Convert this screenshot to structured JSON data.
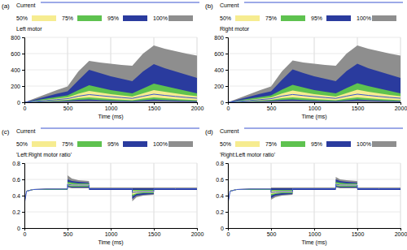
{
  "chart_data": [
    {
      "type": "area",
      "annotation": "(a)",
      "title": "Left motor",
      "xlabel": "Time (ms)",
      "x": [
        0,
        125,
        250,
        375,
        500,
        625,
        750,
        875,
        1000,
        1125,
        1250,
        1375,
        1500,
        1625,
        1750,
        1875,
        2000
      ],
      "xlim": [
        0,
        2000
      ],
      "xticks": [
        0,
        500,
        1000,
        1500,
        2000
      ],
      "ylim": [
        0,
        800
      ],
      "yticks": [
        0,
        200,
        400,
        600,
        800
      ],
      "grid": true,
      "legend": "top",
      "series": [
        {
          "name": "Current",
          "type": "line",
          "color": "#3a55d0",
          "values": [
            0,
            11,
            22,
            33,
            44,
            75,
            95,
            82,
            70,
            58,
            48,
            75,
            100,
            85,
            72,
            60,
            50
          ]
        },
        {
          "name": "50%",
          "color": "#f6ec90",
          "lower": [
            0,
            8,
            15,
            22,
            30,
            50,
            60,
            50,
            40,
            32,
            25,
            45,
            60,
            50,
            40,
            32,
            25
          ],
          "upper": [
            0,
            15,
            30,
            45,
            60,
            105,
            140,
            120,
            100,
            85,
            70,
            110,
            150,
            130,
            110,
            90,
            75
          ]
        },
        {
          "name": "75%",
          "color": "#5ec24f",
          "lower": [
            0,
            5,
            10,
            15,
            20,
            30,
            35,
            28,
            22,
            18,
            14,
            25,
            35,
            28,
            22,
            18,
            14
          ],
          "upper": [
            0,
            22,
            45,
            65,
            85,
            150,
            210,
            180,
            150,
            130,
            110,
            170,
            230,
            200,
            170,
            140,
            110
          ]
        },
        {
          "name": "95%",
          "color": "#2a3b9e",
          "lower": [
            0,
            2,
            5,
            7,
            10,
            15,
            18,
            14,
            10,
            8,
            6,
            12,
            18,
            14,
            10,
            8,
            6
          ],
          "upper": [
            0,
            35,
            70,
            105,
            135,
            270,
            400,
            360,
            320,
            290,
            260,
            380,
            470,
            420,
            380,
            340,
            300
          ]
        },
        {
          "name": "100%",
          "color": "#8e8e8e",
          "lower": [
            0,
            0,
            0,
            0,
            0,
            0,
            0,
            0,
            0,
            0,
            0,
            0,
            0,
            0,
            0,
            0,
            0
          ],
          "upper": [
            0,
            50,
            100,
            150,
            195,
            380,
            510,
            490,
            475,
            460,
            450,
            600,
            700,
            660,
            630,
            600,
            575
          ]
        }
      ]
    },
    {
      "type": "area",
      "annotation": "(b)",
      "title": "Right motor",
      "xlabel": "Time (ms)",
      "x": [
        0,
        125,
        250,
        375,
        500,
        625,
        750,
        875,
        1000,
        1125,
        1250,
        1375,
        1500,
        1625,
        1750,
        1875,
        2000
      ],
      "xlim": [
        0,
        2000
      ],
      "xticks": [
        0,
        500,
        1000,
        1500,
        2000
      ],
      "ylim": [
        0,
        800
      ],
      "yticks": [
        0,
        200,
        400,
        600,
        800
      ],
      "grid": true,
      "legend": "top",
      "series": [
        {
          "name": "Current",
          "type": "line",
          "color": "#3a55d0",
          "values": [
            0,
            11,
            22,
            33,
            44,
            76,
            96,
            82,
            70,
            58,
            48,
            76,
            100,
            85,
            72,
            60,
            50
          ]
        },
        {
          "name": "50%",
          "color": "#f6ec90",
          "lower": [
            0,
            8,
            15,
            22,
            30,
            50,
            60,
            50,
            40,
            32,
            25,
            45,
            60,
            50,
            40,
            32,
            25
          ],
          "upper": [
            0,
            15,
            30,
            45,
            60,
            108,
            145,
            122,
            100,
            85,
            70,
            112,
            155,
            130,
            110,
            90,
            75
          ]
        },
        {
          "name": "75%",
          "color": "#5ec24f",
          "lower": [
            0,
            5,
            10,
            15,
            20,
            30,
            35,
            28,
            22,
            18,
            14,
            25,
            35,
            28,
            22,
            18,
            14
          ],
          "upper": [
            0,
            22,
            45,
            65,
            85,
            155,
            215,
            182,
            150,
            130,
            110,
            175,
            235,
            200,
            170,
            140,
            110
          ]
        },
        {
          "name": "95%",
          "color": "#2a3b9e",
          "lower": [
            0,
            2,
            5,
            7,
            10,
            15,
            18,
            14,
            10,
            8,
            6,
            12,
            18,
            14,
            10,
            8,
            6
          ],
          "upper": [
            0,
            35,
            70,
            105,
            135,
            275,
            405,
            360,
            320,
            290,
            260,
            385,
            475,
            420,
            380,
            340,
            300
          ]
        },
        {
          "name": "100%",
          "color": "#8e8e8e",
          "lower": [
            0,
            0,
            0,
            0,
            0,
            0,
            0,
            0,
            0,
            0,
            0,
            0,
            0,
            0,
            0,
            0,
            0
          ],
          "upper": [
            0,
            50,
            100,
            150,
            195,
            380,
            515,
            490,
            475,
            460,
            450,
            600,
            700,
            660,
            630,
            600,
            575
          ]
        }
      ]
    },
    {
      "type": "area",
      "annotation": "(c)",
      "title": "'Left:Right motor ratio'",
      "xlabel": "Time (ms)",
      "x": [
        0,
        25,
        100,
        250,
        499,
        500,
        550,
        625,
        749,
        750,
        1000,
        1249,
        1250,
        1300,
        1375,
        1499,
        1500,
        1750,
        2000
      ],
      "xlim": [
        0,
        2000
      ],
      "xticks": [
        0,
        500,
        1000,
        1500,
        2000
      ],
      "ylim": [
        0,
        0.8
      ],
      "yticks": [
        0,
        0.2,
        0.4,
        0.6,
        0.8
      ],
      "grid": true,
      "legend": "top",
      "series": [
        {
          "name": "Current",
          "type": "line",
          "color": "#3a55d0",
          "values": [
            0.3,
            0.455,
            0.475,
            0.48,
            0.48,
            0.54,
            0.53,
            0.53,
            0.53,
            0.485,
            0.485,
            0.485,
            0.44,
            0.445,
            0.45,
            0.45,
            0.485,
            0.485,
            0.485
          ]
        },
        {
          "name": "50%",
          "color": "#f6ec90",
          "lower": [
            0.3,
            0.45,
            0.47,
            0.48,
            0.48,
            0.53,
            0.52,
            0.52,
            0.52,
            0.48,
            0.48,
            0.48,
            0.41,
            0.43,
            0.44,
            0.44,
            0.48,
            0.48,
            0.48
          ],
          "upper": [
            0.3,
            0.46,
            0.48,
            0.48,
            0.48,
            0.55,
            0.54,
            0.54,
            0.54,
            0.49,
            0.49,
            0.49,
            0.46,
            0.46,
            0.46,
            0.46,
            0.49,
            0.49,
            0.49
          ]
        },
        {
          "name": "75%",
          "color": "#5ec24f",
          "lower": [
            0.3,
            0.45,
            0.47,
            0.47,
            0.47,
            0.52,
            0.51,
            0.51,
            0.51,
            0.48,
            0.48,
            0.48,
            0.39,
            0.42,
            0.43,
            0.43,
            0.48,
            0.48,
            0.48
          ],
          "upper": [
            0.3,
            0.46,
            0.48,
            0.48,
            0.48,
            0.57,
            0.56,
            0.55,
            0.55,
            0.49,
            0.49,
            0.49,
            0.47,
            0.47,
            0.47,
            0.47,
            0.49,
            0.49,
            0.49
          ]
        },
        {
          "name": "95%",
          "color": "#2a3b9e",
          "lower": [
            0.3,
            0.45,
            0.47,
            0.47,
            0.47,
            0.51,
            0.5,
            0.5,
            0.5,
            0.47,
            0.47,
            0.47,
            0.36,
            0.4,
            0.41,
            0.42,
            0.47,
            0.47,
            0.47
          ],
          "upper": [
            0.3,
            0.46,
            0.48,
            0.48,
            0.48,
            0.6,
            0.58,
            0.57,
            0.56,
            0.49,
            0.49,
            0.49,
            0.49,
            0.49,
            0.49,
            0.49,
            0.49,
            0.49,
            0.49
          ]
        },
        {
          "name": "100%",
          "color": "#8e8e8e",
          "lower": [
            0.3,
            0.45,
            0.47,
            0.47,
            0.47,
            0.5,
            0.49,
            0.49,
            0.49,
            0.47,
            0.47,
            0.47,
            0.33,
            0.38,
            0.4,
            0.41,
            0.47,
            0.47,
            0.47
          ],
          "upper": [
            0.3,
            0.46,
            0.48,
            0.49,
            0.49,
            0.65,
            0.61,
            0.59,
            0.58,
            0.5,
            0.5,
            0.5,
            0.5,
            0.5,
            0.5,
            0.5,
            0.5,
            0.5,
            0.5
          ]
        }
      ]
    },
    {
      "type": "area",
      "annotation": "(d)",
      "title": "'Right:Left motor ratio'",
      "xlabel": "Time (ms)",
      "x": [
        0,
        25,
        100,
        250,
        499,
        500,
        550,
        625,
        749,
        750,
        1000,
        1249,
        1250,
        1300,
        1375,
        1499,
        1500,
        1750,
        2000
      ],
      "xlim": [
        0,
        2000
      ],
      "xticks": [
        0,
        500,
        1000,
        1500,
        2000
      ],
      "ylim": [
        0,
        0.8
      ],
      "yticks": [
        0,
        0.2,
        0.4,
        0.6,
        0.8
      ],
      "grid": true,
      "legend": "top",
      "series": [
        {
          "name": "Current",
          "type": "line",
          "color": "#3a55d0",
          "values": [
            0.3,
            0.455,
            0.475,
            0.48,
            0.48,
            0.44,
            0.445,
            0.45,
            0.45,
            0.485,
            0.485,
            0.485,
            0.54,
            0.53,
            0.53,
            0.53,
            0.485,
            0.485,
            0.485
          ]
        },
        {
          "name": "50%",
          "color": "#f6ec90",
          "lower": [
            0.3,
            0.45,
            0.47,
            0.48,
            0.48,
            0.42,
            0.43,
            0.44,
            0.44,
            0.48,
            0.48,
            0.48,
            0.53,
            0.52,
            0.52,
            0.52,
            0.48,
            0.48,
            0.48
          ],
          "upper": [
            0.3,
            0.46,
            0.48,
            0.48,
            0.48,
            0.46,
            0.46,
            0.46,
            0.46,
            0.49,
            0.49,
            0.49,
            0.55,
            0.54,
            0.54,
            0.54,
            0.49,
            0.49,
            0.49
          ]
        },
        {
          "name": "75%",
          "color": "#5ec24f",
          "lower": [
            0.3,
            0.45,
            0.47,
            0.47,
            0.47,
            0.4,
            0.42,
            0.43,
            0.43,
            0.48,
            0.48,
            0.48,
            0.52,
            0.51,
            0.51,
            0.51,
            0.48,
            0.48,
            0.48
          ],
          "upper": [
            0.3,
            0.46,
            0.48,
            0.48,
            0.48,
            0.47,
            0.47,
            0.47,
            0.47,
            0.49,
            0.49,
            0.49,
            0.57,
            0.56,
            0.55,
            0.55,
            0.49,
            0.49,
            0.49
          ]
        },
        {
          "name": "95%",
          "color": "#2a3b9e",
          "lower": [
            0.3,
            0.45,
            0.47,
            0.47,
            0.47,
            0.37,
            0.4,
            0.41,
            0.42,
            0.47,
            0.47,
            0.47,
            0.51,
            0.5,
            0.5,
            0.5,
            0.47,
            0.47,
            0.47
          ],
          "upper": [
            0.3,
            0.46,
            0.48,
            0.48,
            0.48,
            0.49,
            0.49,
            0.49,
            0.49,
            0.49,
            0.49,
            0.49,
            0.6,
            0.58,
            0.57,
            0.56,
            0.49,
            0.49,
            0.49
          ]
        },
        {
          "name": "100%",
          "color": "#8e8e8e",
          "lower": [
            0.3,
            0.45,
            0.47,
            0.47,
            0.47,
            0.35,
            0.38,
            0.4,
            0.41,
            0.47,
            0.47,
            0.47,
            0.5,
            0.49,
            0.49,
            0.49,
            0.47,
            0.47,
            0.47
          ],
          "upper": [
            0.3,
            0.46,
            0.48,
            0.49,
            0.49,
            0.5,
            0.5,
            0.5,
            0.5,
            0.5,
            0.5,
            0.5,
            0.63,
            0.6,
            0.59,
            0.58,
            0.5,
            0.5,
            0.5
          ]
        }
      ]
    }
  ]
}
